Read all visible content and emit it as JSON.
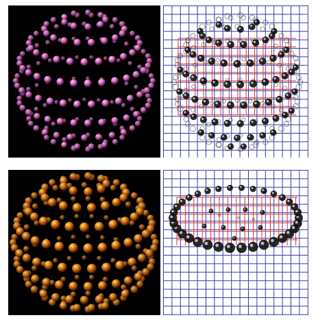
{
  "colors": {
    "background": "#ffffff",
    "render_bg": "#000000",
    "pink_sphere": "#e070c8",
    "pink_highlight": "#ffd0f4",
    "orange_sphere": "#e07818",
    "yellow_highlight": "#fff070",
    "grid_blue": "#3a3aa8",
    "grid_red": "#d83030",
    "marker_dark": "#111111"
  },
  "panels": [
    {
      "id": "top-left",
      "kind": "rendered-sphere-array",
      "palette": "pink"
    },
    {
      "id": "top-right",
      "kind": "grid-overlay-sphere-array"
    },
    {
      "id": "bottom-left",
      "kind": "rendered-sphere-array",
      "palette": "orange"
    },
    {
      "id": "bottom-right",
      "kind": "grid-overlay-ring"
    }
  ]
}
